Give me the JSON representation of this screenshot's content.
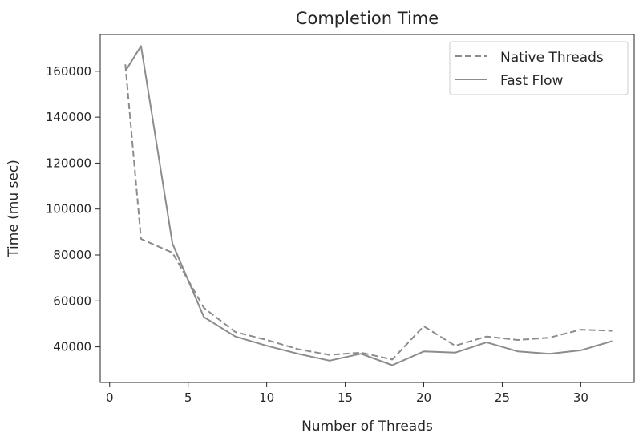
{
  "chart_data": {
    "type": "line",
    "title": "Completion Time",
    "xlabel": "Number of Threads",
    "ylabel": "Time (mu sec)",
    "xlim": [
      -0.6,
      33.4
    ],
    "ylim": [
      24500,
      176000
    ],
    "x_ticks": [
      0,
      5,
      10,
      15,
      20,
      25,
      30
    ],
    "y_ticks": [
      40000,
      60000,
      80000,
      100000,
      120000,
      140000,
      160000
    ],
    "x_tick_labels": [
      "0",
      "5",
      "10",
      "15",
      "20",
      "25",
      "30"
    ],
    "y_tick_labels": [
      "40000",
      "60000",
      "80000",
      "100000",
      "120000",
      "140000",
      "160000"
    ],
    "grid": false,
    "legend_position": "top-right",
    "series": [
      {
        "name": "Native Threads",
        "style": "dashed",
        "color": "#8c8c8c",
        "x": [
          1,
          2,
          4,
          6,
          8,
          10,
          12,
          14,
          16,
          18,
          20,
          22,
          24,
          26,
          28,
          30,
          32
        ],
        "y": [
          163000,
          87000,
          81000,
          57000,
          46500,
          43000,
          39000,
          36500,
          37500,
          34500,
          49000,
          40500,
          44500,
          43000,
          44000,
          47500,
          47000
        ]
      },
      {
        "name": "Fast Flow",
        "style": "solid",
        "color": "#8c8c8c",
        "x": [
          1,
          2,
          4,
          6,
          8,
          10,
          12,
          14,
          16,
          18,
          20,
          22,
          24,
          26,
          28,
          30,
          32
        ],
        "y": [
          160000,
          171000,
          85000,
          53000,
          44500,
          40500,
          37000,
          34000,
          37000,
          32000,
          38000,
          37500,
          42000,
          38000,
          37000,
          38500,
          42500
        ]
      }
    ]
  }
}
